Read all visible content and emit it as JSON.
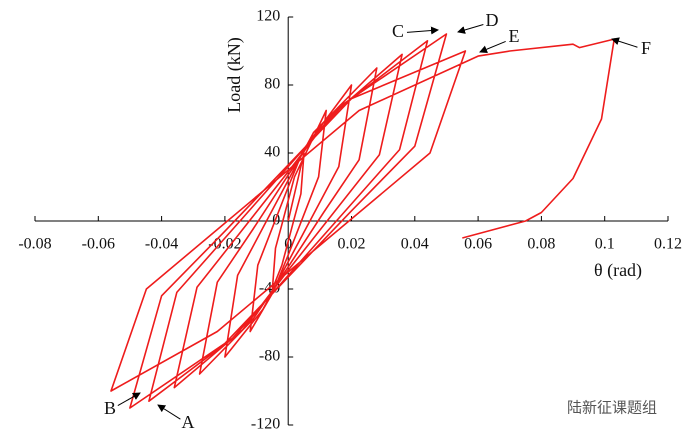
{
  "chart_data": {
    "type": "line",
    "xlabel": "θ (rad)",
    "ylabel": "Load (kN)",
    "xlim": [
      -0.08,
      0.12
    ],
    "xticks": [
      -0.08,
      -0.06,
      -0.04,
      -0.02,
      0,
      0.02,
      0.04,
      0.06,
      0.08,
      0.1,
      0.12
    ],
    "ylim": [
      -120,
      120
    ],
    "yticks": [
      -120,
      -80,
      -40,
      0,
      40,
      80,
      120
    ],
    "series": [
      {
        "color": "#ee1c1c",
        "x": [
          0,
          0.005,
          0.004,
          0.002,
          0,
          -0.002,
          -0.005,
          -0.004,
          -0.002,
          0,
          0.002,
          0.012,
          0.0096,
          0.0048,
          0,
          -0.0048,
          -0.012,
          -0.0096,
          -0.0048,
          0,
          0.0048,
          0.02,
          0.016,
          0.008,
          0,
          -0.008,
          -0.02,
          -0.016,
          -0.008,
          0,
          0.008,
          0.028,
          0.0224,
          0.0112,
          0,
          -0.0112,
          -0.028,
          -0.0224,
          -0.0112,
          0,
          0.0112,
          0.036,
          0.0288,
          0.0144,
          0,
          -0.0144,
          -0.036,
          -0.0288,
          -0.0144,
          0,
          0.0144,
          0.044,
          0.0352,
          0.0176,
          0,
          -0.0176,
          -0.044,
          -0.0352,
          -0.0176,
          0,
          0.0176,
          0.05,
          0.04,
          0.02,
          0,
          -0.02,
          -0.05,
          -0.04,
          -0.02,
          0,
          0.02,
          0.056,
          0.0448,
          0.0224,
          0,
          -0.0224,
          -0.056,
          -0.0448,
          -0.0224,
          0,
          0.0224,
          0.06,
          0.07,
          0.09,
          0.092,
          0.103,
          0.099,
          0.09,
          0.08,
          0.075,
          0.055
        ],
        "values": [
          0,
          40,
          16,
          2,
          -12,
          -26,
          -40,
          -16,
          -2,
          12,
          26,
          65,
          26,
          3,
          -20,
          -42,
          -65,
          -26,
          -3,
          20,
          42,
          80,
          32,
          4,
          -24,
          -52,
          -80,
          -32,
          -4,
          24,
          52,
          90,
          36,
          5,
          -27,
          -58,
          -90,
          -36,
          -5,
          27,
          58,
          98,
          39,
          5,
          -29,
          -64,
          -98,
          -39,
          -5,
          29,
          64,
          106,
          42,
          5,
          -32,
          -69,
          -106,
          -42,
          -5,
          32,
          69,
          110,
          44,
          6,
          -33,
          -72,
          -110,
          -44,
          -6,
          33,
          72,
          100,
          40,
          5,
          -30,
          -65,
          -100,
          -40,
          -5,
          30,
          65,
          97,
          100,
          104,
          102,
          107,
          60,
          25,
          5,
          0,
          -10
        ]
      }
    ],
    "annotations": [
      "A",
      "B",
      "C",
      "D",
      "E",
      "F"
    ],
    "watermark": "陆新征课题组"
  }
}
